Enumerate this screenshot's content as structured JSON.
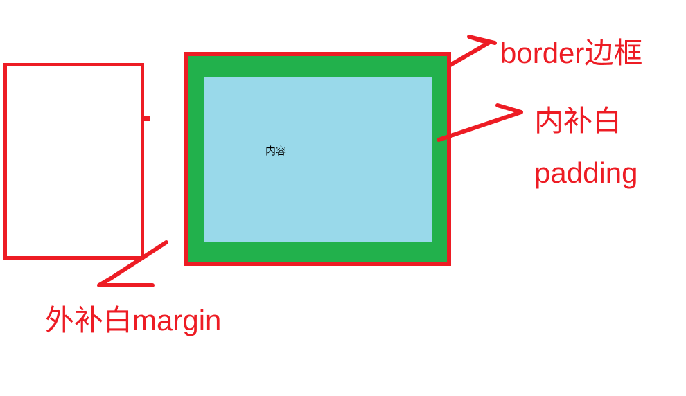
{
  "diagram": {
    "content_label": "内容",
    "border_label": "border边框",
    "padding_label_cn": "内补白",
    "padding_label_en": "padding",
    "margin_label": "外补白margin",
    "colors": {
      "red": "#ed1c24",
      "green": "#22b14c",
      "light_blue": "#99d9ea",
      "white": "#ffffff"
    }
  }
}
